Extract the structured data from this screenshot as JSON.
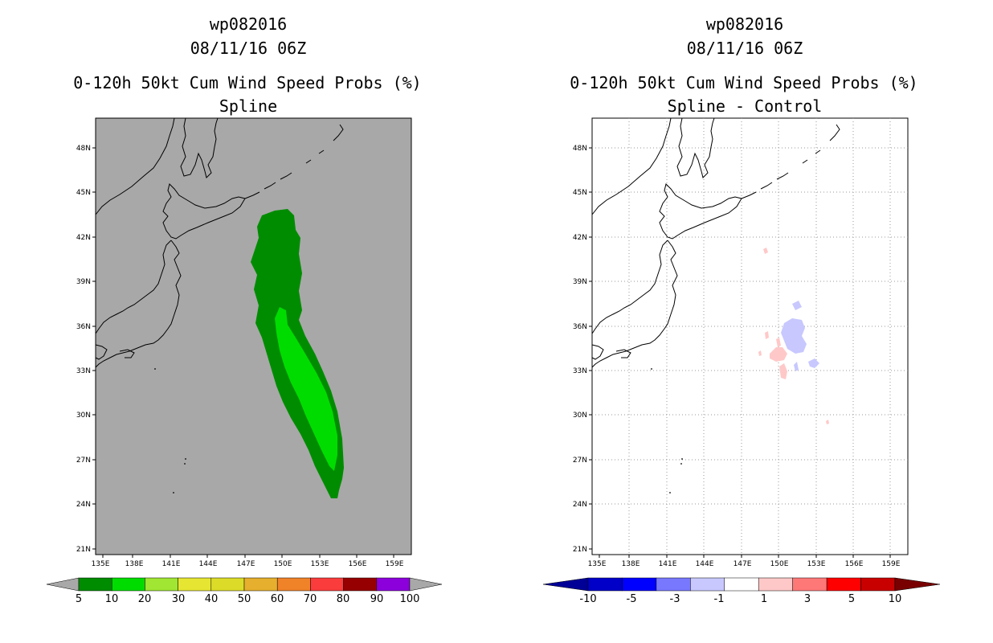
{
  "left_panel": {
    "storm_id": "wp082016",
    "datetime": "08/11/16 06Z",
    "product": "0-120h 50kt Cum Wind Speed Probs (%)",
    "subtitle": "Spline",
    "colorbar": {
      "labels": [
        "5",
        "10",
        "20",
        "30",
        "40",
        "50",
        "60",
        "70",
        "80",
        "90",
        "100"
      ],
      "colors": [
        "#008c00",
        "#00dc00",
        "#a0e632",
        "#e6e632",
        "#dcdc28",
        "#e6af2d",
        "#f08228",
        "#fa3c3c",
        "#960000",
        "#8c00dc"
      ],
      "end_color": "#a8a8a8"
    }
  },
  "right_panel": {
    "storm_id": "wp082016",
    "datetime": "08/11/16 06Z",
    "product": "0-120h 50kt Cum Wind Speed Probs (%)",
    "subtitle": "Spline - Control",
    "colorbar": {
      "labels": [
        "-10",
        "-5",
        "-3",
        "-1",
        "1",
        "3",
        "5",
        "10"
      ],
      "colors": [
        "#0000c8",
        "#0000ff",
        "#7878ff",
        "#c8c8ff",
        "#ffffff",
        "#ffc8c8",
        "#ff7878",
        "#ff0000",
        "#c80000"
      ],
      "low_color": "#000096",
      "high_color": "#780000"
    }
  },
  "axes": {
    "lon_labels": [
      "135E",
      "138E",
      "141E",
      "144E",
      "147E",
      "150E",
      "153E",
      "156E",
      "159E"
    ],
    "lat_labels": [
      "48N",
      "45N",
      "42N",
      "39N",
      "36N",
      "33N",
      "30N",
      "27N",
      "24N",
      "21N"
    ]
  },
  "colors": {
    "ocean_bg": "#a8a8a8",
    "prob_outer": "#008c00",
    "prob_inner": "#00dc00",
    "diff_neg": "#c8c8ff",
    "diff_pos": "#ffc8c8"
  }
}
